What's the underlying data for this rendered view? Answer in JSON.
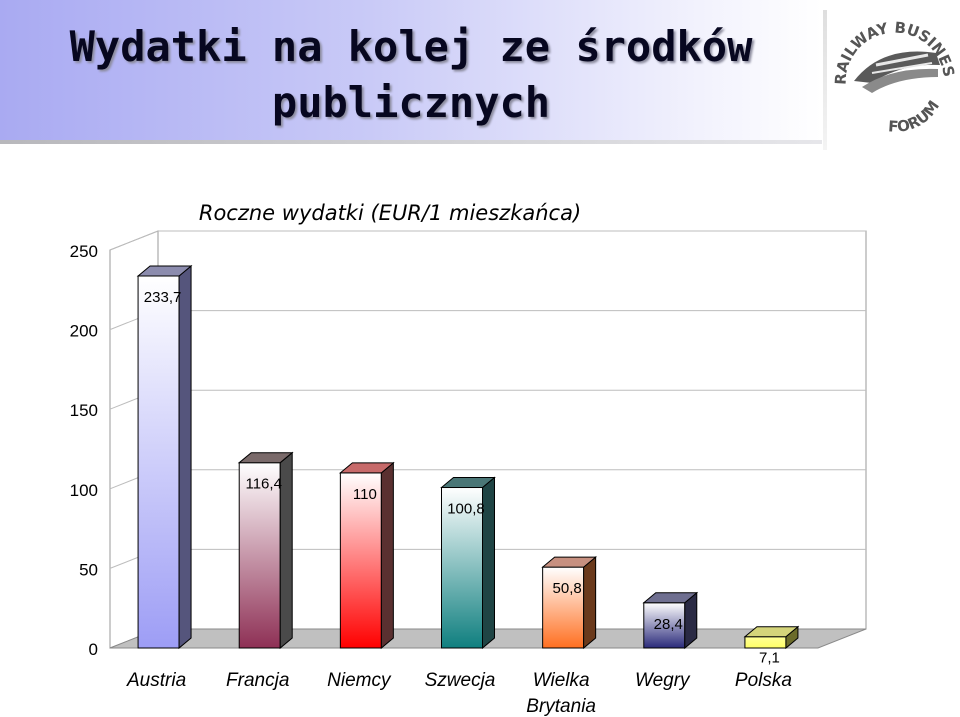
{
  "header": {
    "title_line1": "Wydatki na kolej ze środków",
    "title_line2": "publicznych"
  },
  "logo": {
    "top_text": "RAILWAY BUSINESS",
    "bottom_text": "FORUM"
  },
  "chart_data": {
    "type": "bar",
    "title": "Roczne wydatki (EUR/1 mieszkańca)",
    "categories": [
      "Austria",
      "Francja",
      "Niemcy",
      "Szwecja",
      "Wielka Brytania",
      "Wegry",
      "Polska"
    ],
    "values": [
      233.7,
      116.4,
      110,
      100.8,
      50.8,
      28.4,
      7.1
    ],
    "value_labels": [
      "233,7",
      "116,4",
      "110",
      "100,8",
      "50,8",
      "28,4",
      "7,1"
    ],
    "ylim": [
      0,
      250
    ],
    "yticks": [
      "0",
      "50",
      "100",
      "150",
      "200",
      "250"
    ],
    "grid": true,
    "three_d": true,
    "bar_colors": [
      {
        "top": "#ffffff",
        "bottom": "#9d9df5",
        "side": "#55557c",
        "cap": "#8c8cae"
      },
      {
        "top": "#ffffff",
        "bottom": "#8e3055",
        "side": "#4a4a4a",
        "cap": "#7a6a6a"
      },
      {
        "top": "#ffffff",
        "bottom": "#ff0000",
        "side": "#5a3030",
        "cap": "#c76a6a"
      },
      {
        "top": "#ffffff",
        "bottom": "#0f7f7f",
        "side": "#1f4444",
        "cap": "#4a7676"
      },
      {
        "top": "#ffffff",
        "bottom": "#ff6f20",
        "side": "#6b3a1c",
        "cap": "#c79080"
      },
      {
        "top": "#ffffff",
        "bottom": "#2a2a7a",
        "side": "#2a2a44",
        "cap": "#6f6f90"
      },
      {
        "top": "#ffff99",
        "bottom": "#ffff66",
        "side": "#6b6b2a",
        "cap": "#d4d47a"
      }
    ]
  }
}
